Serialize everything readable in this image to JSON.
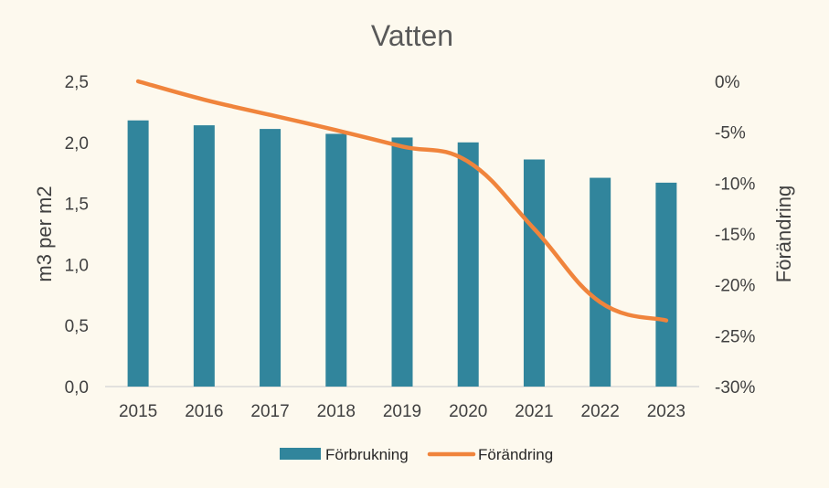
{
  "chart_data": {
    "type": "bar",
    "title": "Vatten",
    "categories": [
      "2015",
      "2016",
      "2017",
      "2018",
      "2019",
      "2020",
      "2021",
      "2022",
      "2023"
    ],
    "ylabel": "m3 per m2",
    "y2label": "Förändring",
    "ylim": [
      0,
      2.5
    ],
    "y2lim": [
      -30,
      0
    ],
    "yticks": [
      "0,0",
      "0,5",
      "1,0",
      "1,5",
      "2,0",
      "2,5"
    ],
    "y2ticks": [
      "-30%",
      "-25%",
      "-20%",
      "-15%",
      "-10%",
      "-5%",
      "0%"
    ],
    "series": [
      {
        "name": "Förbrukning",
        "type": "bar",
        "axis": "left",
        "color": "#31859c",
        "values": [
          2.18,
          2.14,
          2.11,
          2.07,
          2.04,
          2.0,
          1.86,
          1.71,
          1.67
        ]
      },
      {
        "name": "Förändring",
        "type": "line",
        "axis": "right",
        "color": "#f0843c",
        "values": [
          0,
          -1.8,
          -3.3,
          -4.8,
          -6.4,
          -7.9,
          -14.5,
          -21.7,
          -23.5
        ]
      }
    ],
    "legend_position": "bottom",
    "grid": false
  }
}
